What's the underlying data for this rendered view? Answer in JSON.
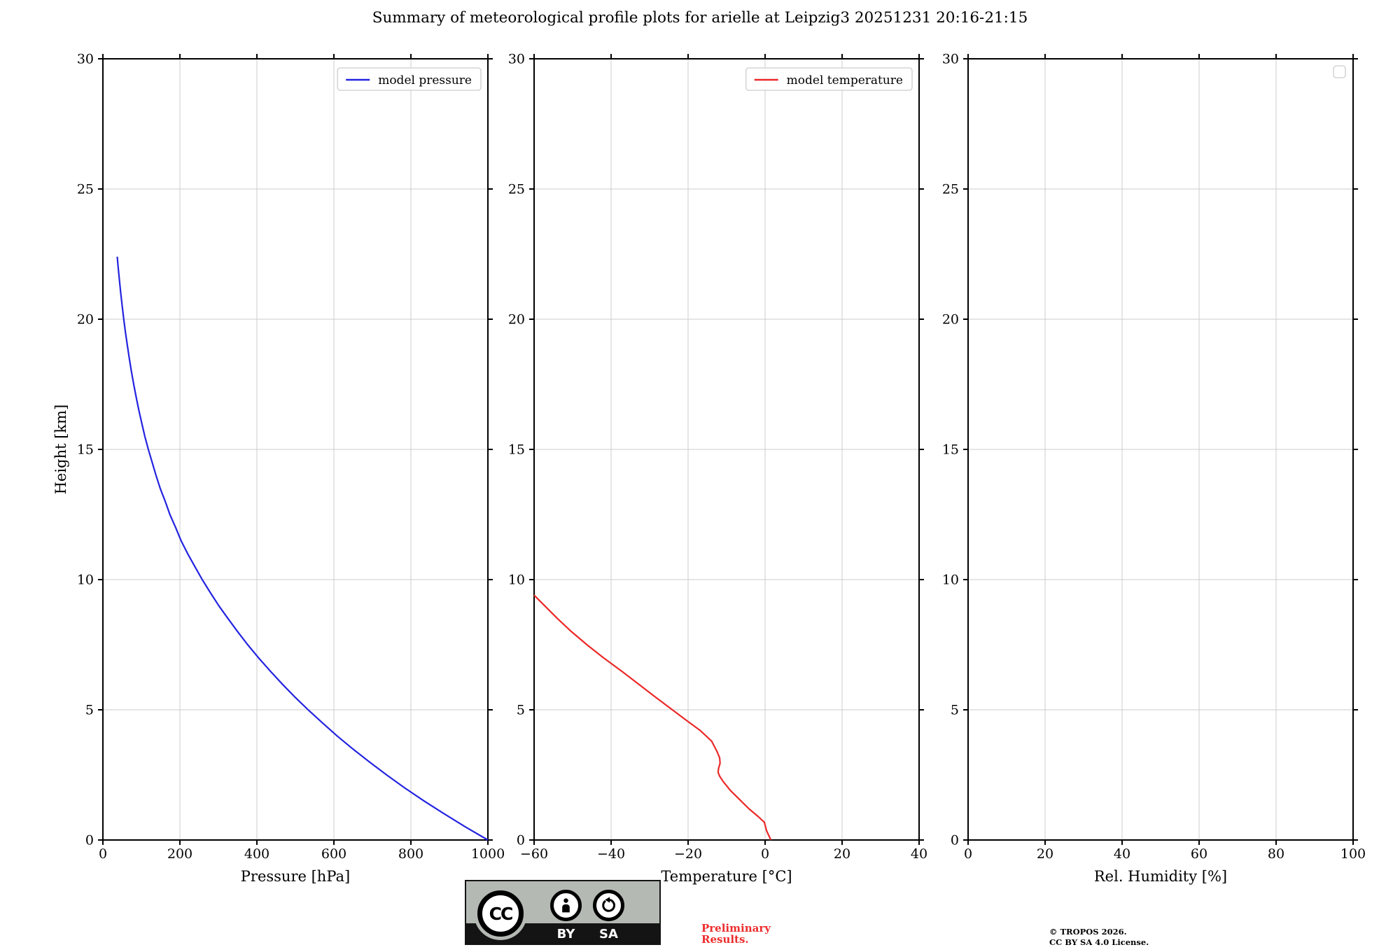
{
  "title": "Summary of meteorological profile plots for arielle at Leipzig3 20251231 20:16-21:15",
  "colors": {
    "pressure_line": "#2323e0",
    "temperature_line": "#eb2828",
    "grid": "#cccccc",
    "spine": "#000000",
    "preliminary_text": "#ed2d2d",
    "badge_gray": "#b4b9b4"
  },
  "footer": {
    "badge": {
      "cc": "CC",
      "by": "BY",
      "sa": "SA"
    },
    "preliminary_line1": "Preliminary",
    "preliminary_line2": "Results.",
    "credit_line1": "© TROPOS 2026.",
    "credit_line2": "CC BY SA 4.0 License."
  },
  "chart_data": [
    {
      "type": "line",
      "xlabel": "Pressure [hPa]",
      "ylabel": "Height [km]",
      "xlim": [
        0,
        1000
      ],
      "ylim": [
        0,
        30
      ],
      "xticks": [
        0,
        200,
        400,
        600,
        800,
        1000
      ],
      "yticks": [
        0,
        5,
        10,
        15,
        20,
        25,
        30
      ],
      "grid": true,
      "legend_position": "top-right",
      "series": [
        {
          "name": "model pressure",
          "color": "#2323e0",
          "x": [
            1000,
            942,
            887,
            834,
            784,
            737,
            692,
            649,
            608,
            570,
            533,
            498,
            465,
            434,
            404,
            376,
            350,
            325,
            301,
            279,
            258,
            239,
            220,
            203,
            189,
            174,
            162,
            149,
            138,
            128,
            118,
            109,
            101,
            93.5,
            86.5,
            80,
            74,
            68.5,
            63.4,
            58.6,
            54.2,
            50.2,
            46.4,
            42.9,
            39.7,
            37.3
          ],
          "y": [
            0,
            0.5,
            1,
            1.5,
            2,
            2.5,
            3,
            3.5,
            4,
            4.5,
            5,
            5.5,
            6,
            6.5,
            7,
            7.5,
            8,
            8.5,
            9,
            9.5,
            10,
            10.5,
            11,
            11.5,
            12,
            12.5,
            13,
            13.5,
            14,
            14.5,
            15,
            15.5,
            16,
            16.5,
            17,
            17.5,
            18,
            18.5,
            19,
            19.5,
            20,
            20.5,
            21,
            21.5,
            22,
            22.4
          ]
        }
      ]
    },
    {
      "type": "line",
      "xlabel": "Temperature [°C]",
      "ylabel": "Height [km]",
      "xlim": [
        -60,
        40
      ],
      "ylim": [
        0,
        30
      ],
      "xticks": [
        -60,
        -40,
        -20,
        0,
        20,
        40
      ],
      "yticks": [
        0,
        5,
        10,
        15,
        20,
        25,
        30
      ],
      "grid": true,
      "legend_position": "top-right",
      "series": [
        {
          "name": "model temperature",
          "color": "#eb2828",
          "x": [
            1.5,
            0.4,
            -0.2,
            -1.8,
            -4.2,
            -6.6,
            -9,
            -10.9,
            -11.8,
            -12.2,
            -12.1,
            -11.7,
            -11.8,
            -12.5,
            -13.9,
            -16.8,
            -20.5,
            -24.1,
            -28.6,
            -33,
            -37.4,
            -42,
            -46.3,
            -50.3,
            -53.9,
            -57.3,
            -60
          ],
          "y": [
            0,
            0.35,
            0.68,
            0.9,
            1.2,
            1.55,
            1.9,
            2.25,
            2.45,
            2.6,
            2.75,
            2.95,
            3.15,
            3.4,
            3.8,
            4.2,
            4.6,
            5,
            5.5,
            6,
            6.5,
            7,
            7.5,
            8,
            8.5,
            9,
            9.4
          ]
        }
      ]
    },
    {
      "type": "line",
      "xlabel": "Rel. Humidity [%]",
      "ylabel": "Height [km]",
      "xlim": [
        0,
        100
      ],
      "ylim": [
        0,
        30
      ],
      "xticks": [
        0,
        20,
        40,
        60,
        80,
        100
      ],
      "yticks": [
        0,
        5,
        10,
        15,
        20,
        25,
        30
      ],
      "grid": true,
      "legend_position": "top-right",
      "series": []
    }
  ]
}
